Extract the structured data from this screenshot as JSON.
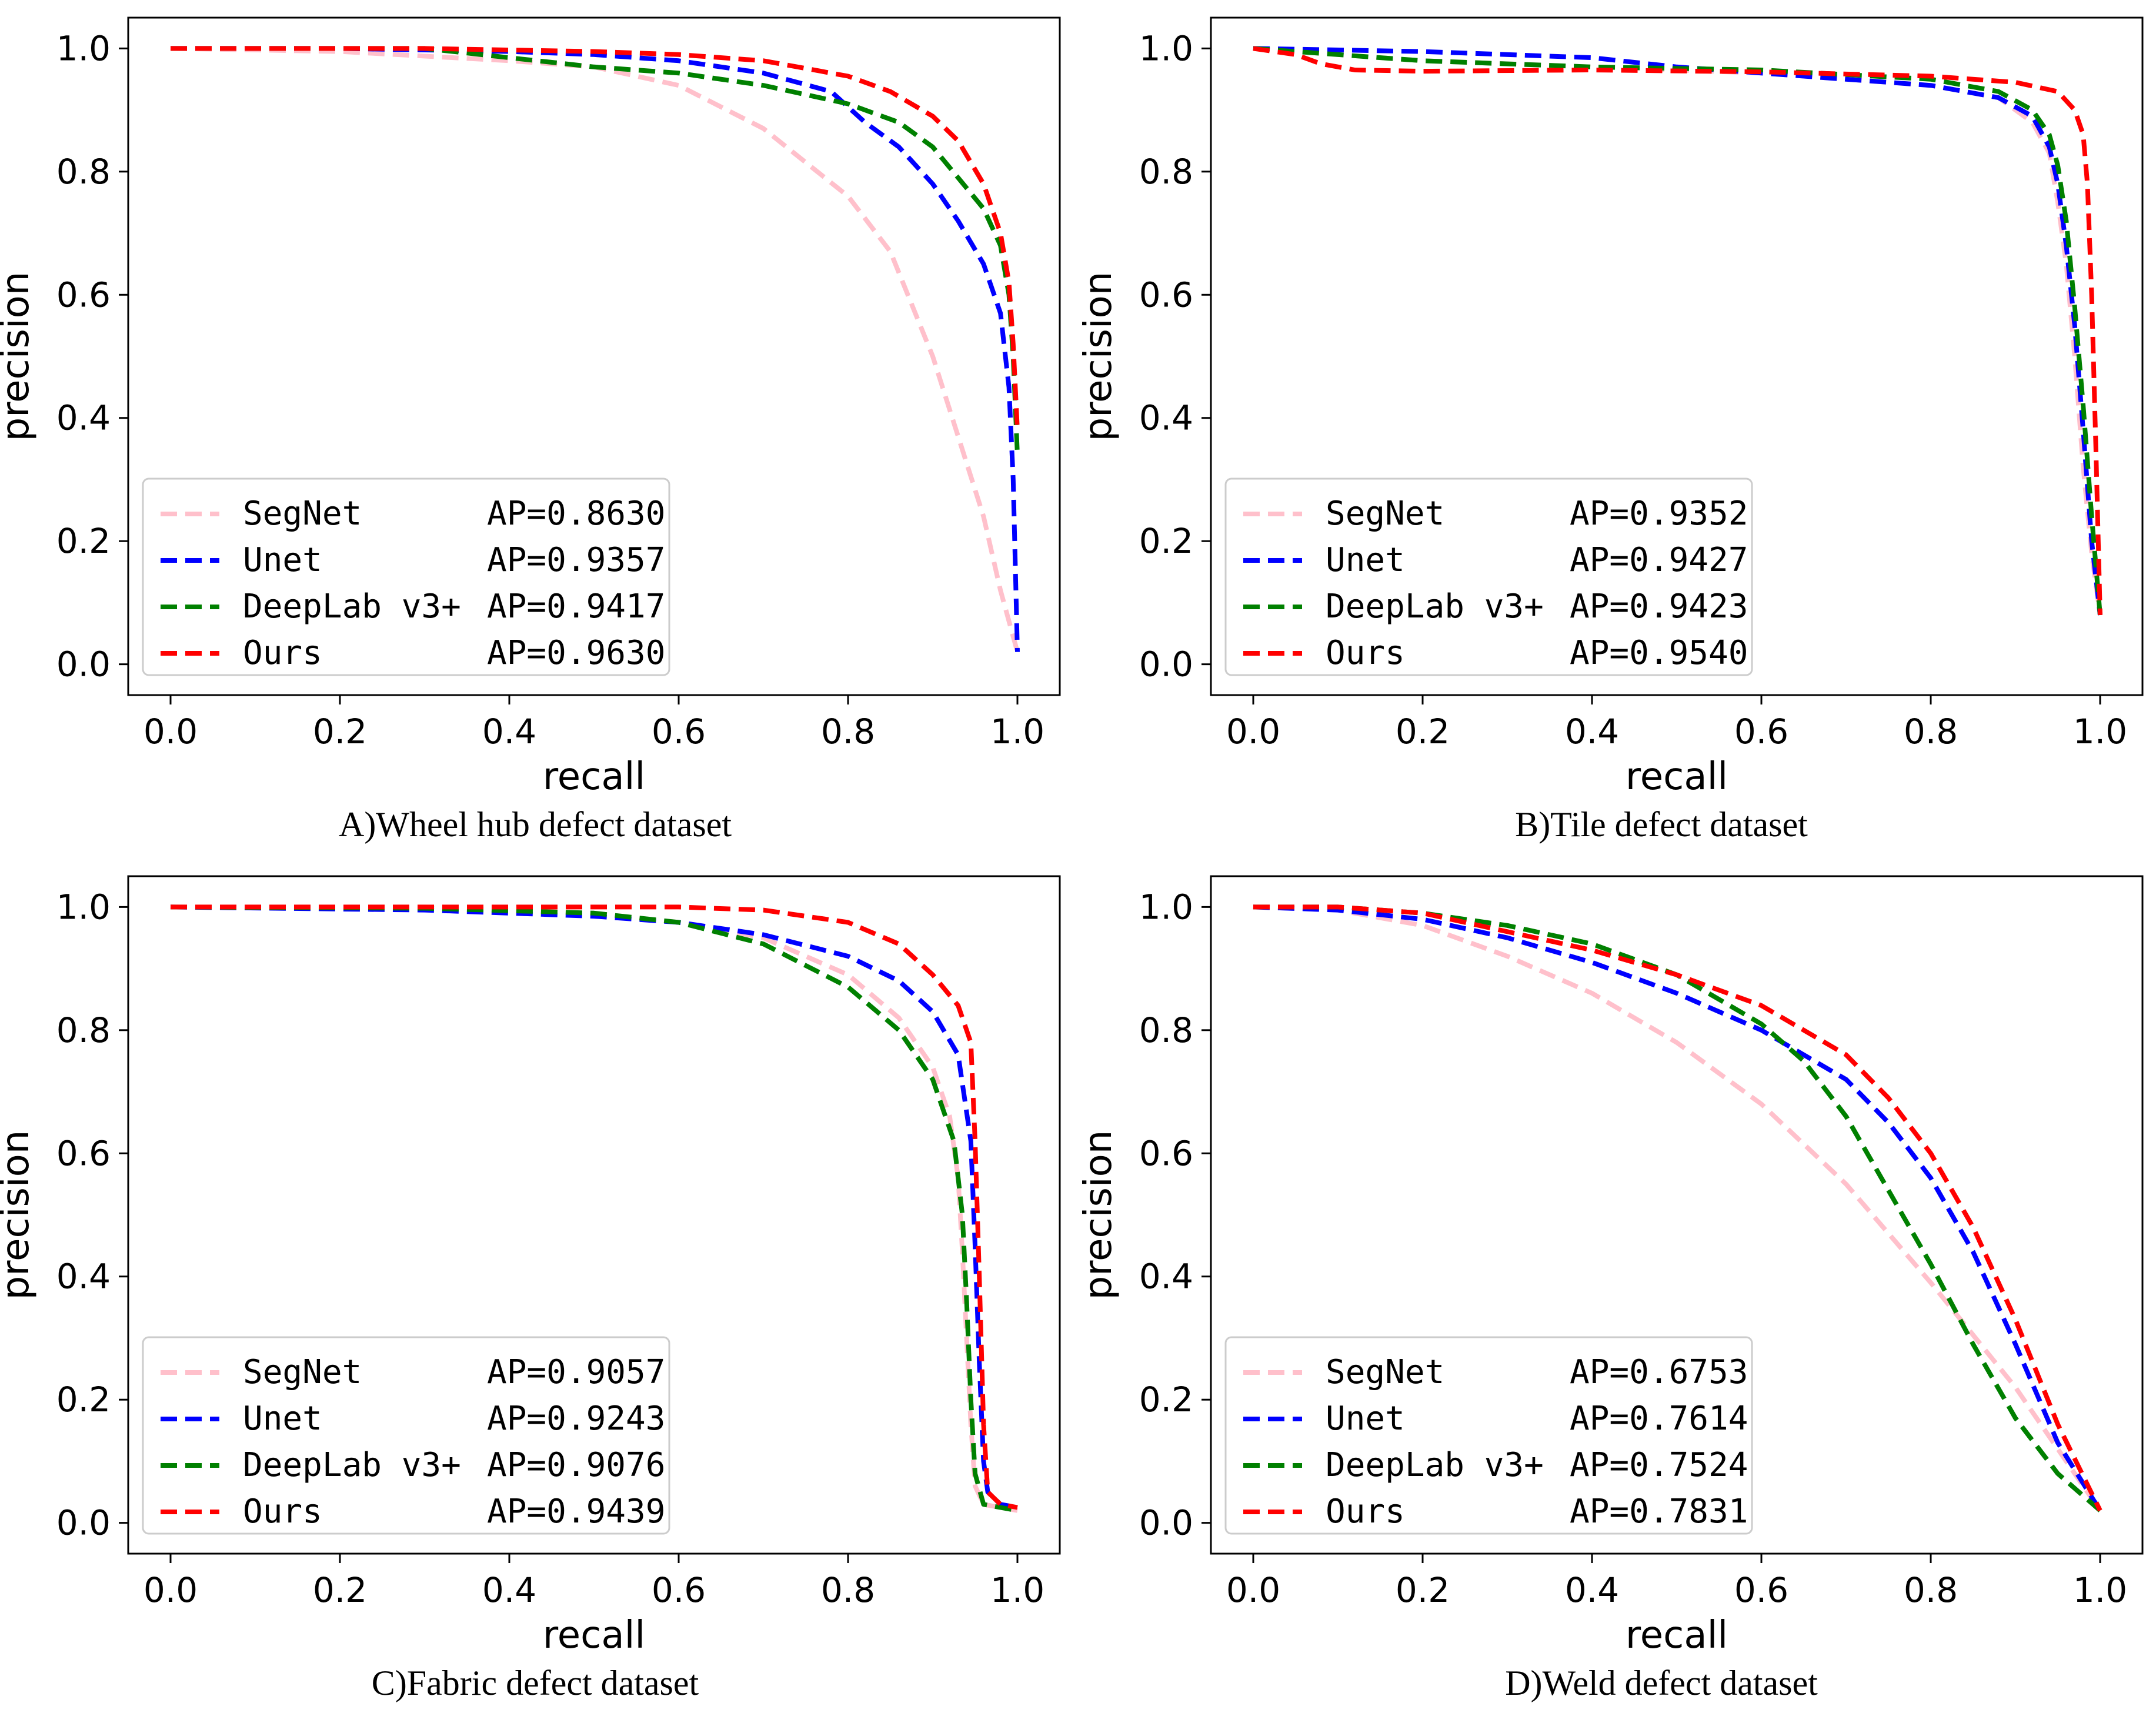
{
  "chart_data": [
    {
      "type": "line",
      "caption": "A)Wheel hub defect dataset",
      "xlabel": "recall",
      "ylabel": "precision",
      "xlim": [
        -0.05,
        1.05
      ],
      "ylim": [
        -0.05,
        1.05
      ],
      "xticks": [
        "0.0",
        "0.2",
        "0.4",
        "0.6",
        "0.8",
        "1.0"
      ],
      "yticks": [
        "0.0",
        "0.2",
        "0.4",
        "0.6",
        "0.8",
        "1.0"
      ],
      "grid": false,
      "legend_position": "lower-left",
      "series": [
        {
          "name": "SegNet",
          "ap_label": "AP=0.8630",
          "color": "#ffc0cb",
          "x": [
            0.0,
            0.2,
            0.4,
            0.5,
            0.6,
            0.7,
            0.8,
            0.85,
            0.9,
            0.93,
            0.96,
            0.98,
            1.0
          ],
          "y": [
            1.0,
            0.995,
            0.98,
            0.97,
            0.94,
            0.87,
            0.76,
            0.67,
            0.5,
            0.37,
            0.24,
            0.12,
            0.02
          ]
        },
        {
          "name": "Unet",
          "ap_label": "AP=0.9357",
          "color": "#0000ff",
          "x": [
            0.0,
            0.2,
            0.4,
            0.5,
            0.6,
            0.7,
            0.78,
            0.82,
            0.86,
            0.9,
            0.93,
            0.96,
            0.98,
            0.99,
            0.995,
            1.0
          ],
          "y": [
            1.0,
            1.0,
            0.995,
            0.99,
            0.98,
            0.96,
            0.93,
            0.88,
            0.84,
            0.78,
            0.72,
            0.65,
            0.57,
            0.45,
            0.3,
            0.02
          ]
        },
        {
          "name": "DeepLab v3+",
          "ap_label": "AP=0.9417",
          "color": "#008000",
          "x": [
            0.0,
            0.3,
            0.4,
            0.5,
            0.6,
            0.7,
            0.8,
            0.86,
            0.9,
            0.93,
            0.96,
            0.98,
            0.99,
            0.995,
            1.0
          ],
          "y": [
            1.0,
            1.0,
            0.985,
            0.97,
            0.96,
            0.94,
            0.91,
            0.88,
            0.84,
            0.79,
            0.74,
            0.68,
            0.6,
            0.5,
            0.34
          ]
        },
        {
          "name": "Ours",
          "ap_label": "AP=0.9630",
          "color": "#ff0000",
          "x": [
            0.0,
            0.3,
            0.5,
            0.6,
            0.7,
            0.8,
            0.85,
            0.9,
            0.93,
            0.96,
            0.98,
            0.99,
            0.995,
            1.0
          ],
          "y": [
            1.0,
            1.0,
            0.995,
            0.99,
            0.98,
            0.955,
            0.93,
            0.89,
            0.85,
            0.78,
            0.7,
            0.62,
            0.52,
            0.38
          ]
        }
      ]
    },
    {
      "type": "line",
      "caption": "B)Tile defect dataset",
      "xlabel": "recall",
      "ylabel": "precision",
      "xlim": [
        -0.05,
        1.05
      ],
      "ylim": [
        -0.05,
        1.05
      ],
      "xticks": [
        "0.0",
        "0.2",
        "0.4",
        "0.6",
        "0.8",
        "1.0"
      ],
      "yticks": [
        "0.0",
        "0.2",
        "0.4",
        "0.6",
        "0.8",
        "1.0"
      ],
      "grid": false,
      "legend_position": "lower-left",
      "series": [
        {
          "name": "SegNet",
          "ap_label": "AP=0.9352",
          "color": "#ffc0cb",
          "x": [
            0.0,
            0.2,
            0.4,
            0.6,
            0.8,
            0.88,
            0.92,
            0.94,
            0.95,
            0.96,
            0.97,
            0.98,
            0.99,
            1.0
          ],
          "y": [
            1.0,
            0.98,
            0.97,
            0.96,
            0.94,
            0.92,
            0.88,
            0.83,
            0.75,
            0.65,
            0.5,
            0.32,
            0.18,
            0.08
          ]
        },
        {
          "name": "Unet",
          "ap_label": "AP=0.9427",
          "color": "#0000ff",
          "x": [
            0.0,
            0.2,
            0.4,
            0.5,
            0.6,
            0.8,
            0.88,
            0.92,
            0.94,
            0.95,
            0.96,
            0.97,
            0.98,
            0.99,
            1.0
          ],
          "y": [
            1.0,
            0.995,
            0.985,
            0.97,
            0.96,
            0.94,
            0.92,
            0.89,
            0.84,
            0.78,
            0.68,
            0.55,
            0.38,
            0.2,
            0.08
          ]
        },
        {
          "name": "DeepLab v3+",
          "ap_label": "AP=0.9423",
          "color": "#008000",
          "x": [
            0.0,
            0.2,
            0.4,
            0.6,
            0.8,
            0.88,
            0.92,
            0.94,
            0.95,
            0.96,
            0.97,
            0.98,
            0.99,
            1.0
          ],
          "y": [
            1.0,
            0.98,
            0.97,
            0.965,
            0.95,
            0.93,
            0.9,
            0.86,
            0.81,
            0.72,
            0.58,
            0.42,
            0.24,
            0.08
          ]
        },
        {
          "name": "Ours",
          "ap_label": "AP=0.9540",
          "color": "#ff0000",
          "x": [
            0.0,
            0.05,
            0.08,
            0.12,
            0.2,
            0.4,
            0.6,
            0.8,
            0.9,
            0.95,
            0.97,
            0.98,
            0.985,
            0.99,
            0.995,
            1.0
          ],
          "y": [
            1.0,
            0.99,
            0.975,
            0.965,
            0.963,
            0.965,
            0.962,
            0.955,
            0.945,
            0.93,
            0.9,
            0.86,
            0.78,
            0.6,
            0.35,
            0.08
          ]
        }
      ]
    },
    {
      "type": "line",
      "caption": "C)Fabric defect dataset",
      "xlabel": "recall",
      "ylabel": "precision",
      "xlim": [
        -0.05,
        1.05
      ],
      "ylim": [
        -0.05,
        1.05
      ],
      "xticks": [
        "0.0",
        "0.2",
        "0.4",
        "0.6",
        "0.8",
        "1.0"
      ],
      "yticks": [
        "0.0",
        "0.2",
        "0.4",
        "0.6",
        "0.8",
        "1.0"
      ],
      "grid": false,
      "legend_position": "lower-left",
      "series": [
        {
          "name": "SegNet",
          "ap_label": "AP=0.9057",
          "color": "#ffc0cb",
          "x": [
            0.0,
            0.3,
            0.5,
            0.6,
            0.7,
            0.8,
            0.86,
            0.9,
            0.92,
            0.93,
            0.935,
            0.94,
            0.945,
            0.95,
            0.96,
            1.0
          ],
          "y": [
            1.0,
            1.0,
            0.99,
            0.975,
            0.95,
            0.89,
            0.82,
            0.74,
            0.66,
            0.56,
            0.44,
            0.3,
            0.16,
            0.06,
            0.03,
            0.02
          ]
        },
        {
          "name": "Unet",
          "ap_label": "AP=0.9243",
          "color": "#0000ff",
          "x": [
            0.0,
            0.3,
            0.5,
            0.6,
            0.7,
            0.8,
            0.86,
            0.9,
            0.93,
            0.945,
            0.95,
            0.955,
            0.96,
            0.965,
            0.98,
            1.0
          ],
          "y": [
            1.0,
            0.995,
            0.985,
            0.975,
            0.955,
            0.92,
            0.88,
            0.83,
            0.76,
            0.62,
            0.45,
            0.26,
            0.1,
            0.05,
            0.03,
            0.025
          ]
        },
        {
          "name": "DeepLab v3+",
          "ap_label": "AP=0.9076",
          "color": "#008000",
          "x": [
            0.0,
            0.3,
            0.5,
            0.6,
            0.7,
            0.8,
            0.86,
            0.9,
            0.925,
            0.935,
            0.94,
            0.945,
            0.95,
            0.96,
            1.0
          ],
          "y": [
            1.0,
            0.998,
            0.99,
            0.975,
            0.94,
            0.87,
            0.8,
            0.72,
            0.62,
            0.5,
            0.36,
            0.2,
            0.08,
            0.03,
            0.02
          ]
        },
        {
          "name": "Ours",
          "ap_label": "AP=0.9439",
          "color": "#ff0000",
          "x": [
            0.0,
            0.4,
            0.6,
            0.7,
            0.8,
            0.86,
            0.9,
            0.93,
            0.945,
            0.95,
            0.955,
            0.96,
            0.965,
            0.98,
            1.0
          ],
          "y": [
            1.0,
            1.0,
            1.0,
            0.995,
            0.975,
            0.94,
            0.89,
            0.84,
            0.78,
            0.62,
            0.4,
            0.16,
            0.05,
            0.03,
            0.025
          ]
        }
      ]
    },
    {
      "type": "line",
      "caption": "D)Weld defect dataset",
      "xlabel": "recall",
      "ylabel": "precision",
      "xlim": [
        -0.05,
        1.05
      ],
      "ylim": [
        -0.05,
        1.05
      ],
      "xticks": [
        "0.0",
        "0.2",
        "0.4",
        "0.6",
        "0.8",
        "1.0"
      ],
      "yticks": [
        "0.0",
        "0.2",
        "0.4",
        "0.6",
        "0.8",
        "1.0"
      ],
      "grid": false,
      "legend_position": "lower-left",
      "series": [
        {
          "name": "SegNet",
          "ap_label": "AP=0.6753",
          "color": "#ffc0cb",
          "x": [
            0.0,
            0.1,
            0.2,
            0.3,
            0.4,
            0.5,
            0.6,
            0.7,
            0.8,
            0.9,
            0.95,
            1.0
          ],
          "y": [
            1.0,
            0.995,
            0.97,
            0.92,
            0.86,
            0.78,
            0.68,
            0.55,
            0.39,
            0.22,
            0.12,
            0.02
          ]
        },
        {
          "name": "Unet",
          "ap_label": "AP=0.7614",
          "color": "#0000ff",
          "x": [
            0.0,
            0.1,
            0.2,
            0.3,
            0.4,
            0.5,
            0.6,
            0.7,
            0.75,
            0.8,
            0.85,
            0.9,
            0.95,
            1.0
          ],
          "y": [
            1.0,
            0.995,
            0.98,
            0.95,
            0.91,
            0.86,
            0.8,
            0.72,
            0.65,
            0.56,
            0.44,
            0.29,
            0.13,
            0.02
          ]
        },
        {
          "name": "DeepLab v3+",
          "ap_label": "AP=0.7524",
          "color": "#008000",
          "x": [
            0.0,
            0.1,
            0.2,
            0.3,
            0.4,
            0.5,
            0.6,
            0.65,
            0.7,
            0.75,
            0.8,
            0.85,
            0.9,
            0.95,
            1.0
          ],
          "y": [
            1.0,
            1.0,
            0.99,
            0.97,
            0.94,
            0.89,
            0.81,
            0.75,
            0.66,
            0.54,
            0.42,
            0.29,
            0.17,
            0.08,
            0.02
          ]
        },
        {
          "name": "Ours",
          "ap_label": "AP=0.7831",
          "color": "#ff0000",
          "x": [
            0.0,
            0.1,
            0.2,
            0.3,
            0.4,
            0.5,
            0.6,
            0.7,
            0.75,
            0.8,
            0.85,
            0.9,
            0.95,
            1.0
          ],
          "y": [
            1.0,
            1.0,
            0.99,
            0.96,
            0.93,
            0.89,
            0.84,
            0.76,
            0.69,
            0.6,
            0.48,
            0.33,
            0.16,
            0.02
          ]
        }
      ]
    }
  ]
}
